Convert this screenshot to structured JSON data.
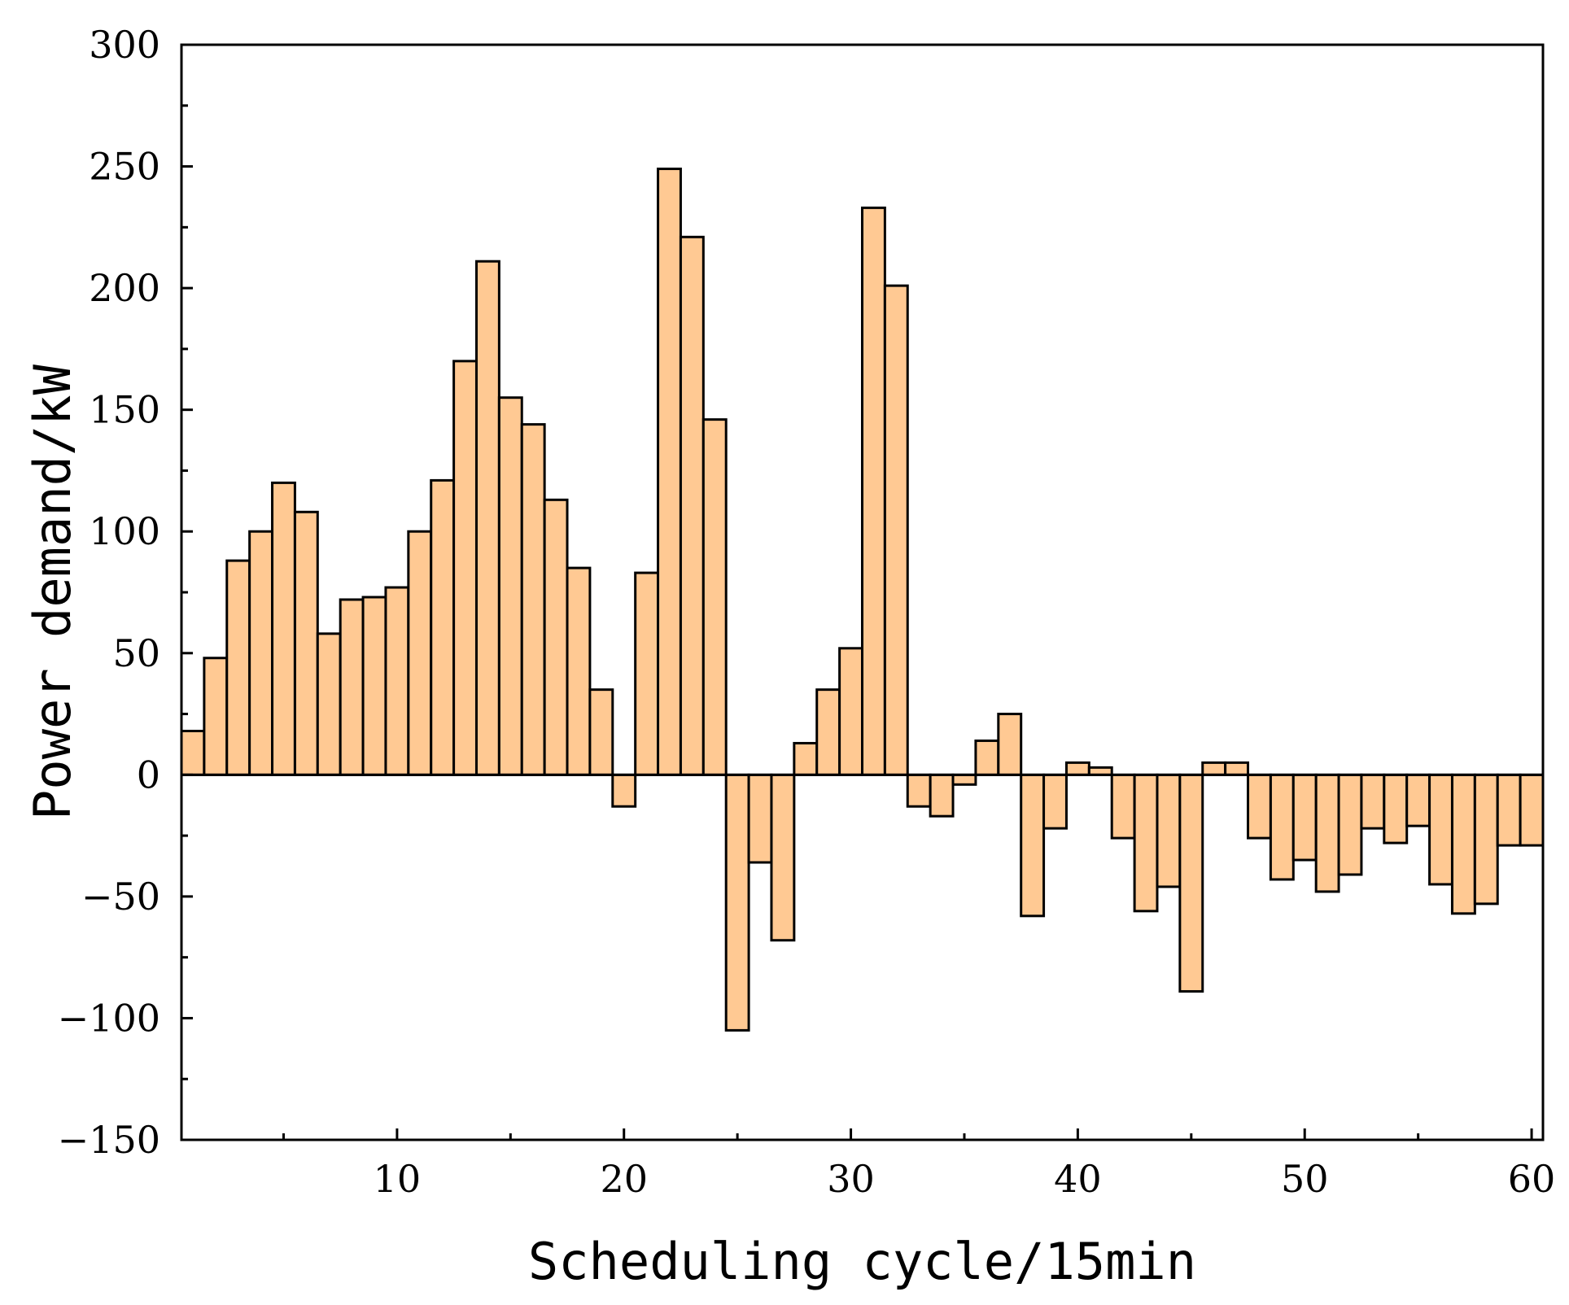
{
  "chart_data": {
    "type": "bar",
    "xlabel": "Scheduling cycle/15min",
    "ylabel": "Power demand/kW",
    "xlim": [
      0.5,
      60.5
    ],
    "ylim": [
      -150,
      300
    ],
    "x_ticks": [
      10,
      20,
      30,
      40,
      50,
      60
    ],
    "y_ticks": [
      -150,
      -100,
      -50,
      0,
      50,
      100,
      150,
      200,
      250,
      300
    ],
    "x_tick_labels": [
      "10",
      "20",
      "30",
      "40",
      "50",
      "60"
    ],
    "y_tick_labels": [
      "−150",
      "−100",
      "−50",
      "0",
      "50",
      "100",
      "150",
      "200",
      "250",
      "300"
    ],
    "bar_color": "#FFC993",
    "x": [
      1,
      2,
      3,
      4,
      5,
      6,
      7,
      8,
      9,
      10,
      11,
      12,
      13,
      14,
      15,
      16,
      17,
      18,
      19,
      20,
      21,
      22,
      23,
      24,
      25,
      26,
      27,
      28,
      29,
      30,
      31,
      32,
      33,
      34,
      35,
      36,
      37,
      38,
      39,
      40,
      41,
      42,
      43,
      44,
      45,
      46,
      47,
      48,
      49,
      50,
      51,
      52,
      53,
      54,
      55,
      56,
      57,
      58,
      59,
      60
    ],
    "values": [
      18,
      48,
      88,
      100,
      120,
      108,
      58,
      72,
      73,
      77,
      100,
      121,
      170,
      211,
      155,
      144,
      113,
      85,
      35,
      -13,
      83,
      249,
      221,
      146,
      -105,
      -36,
      -68,
      13,
      35,
      52,
      233,
      201,
      -13,
      -17,
      -4,
      14,
      25,
      -58,
      -22,
      5,
      3,
      -26,
      -56,
      -46,
      -89,
      5,
      5,
      -26,
      -43,
      -35,
      -48,
      -41,
      -22,
      -28,
      -21,
      -45,
      -57,
      -53,
      -29,
      -29
    ]
  }
}
